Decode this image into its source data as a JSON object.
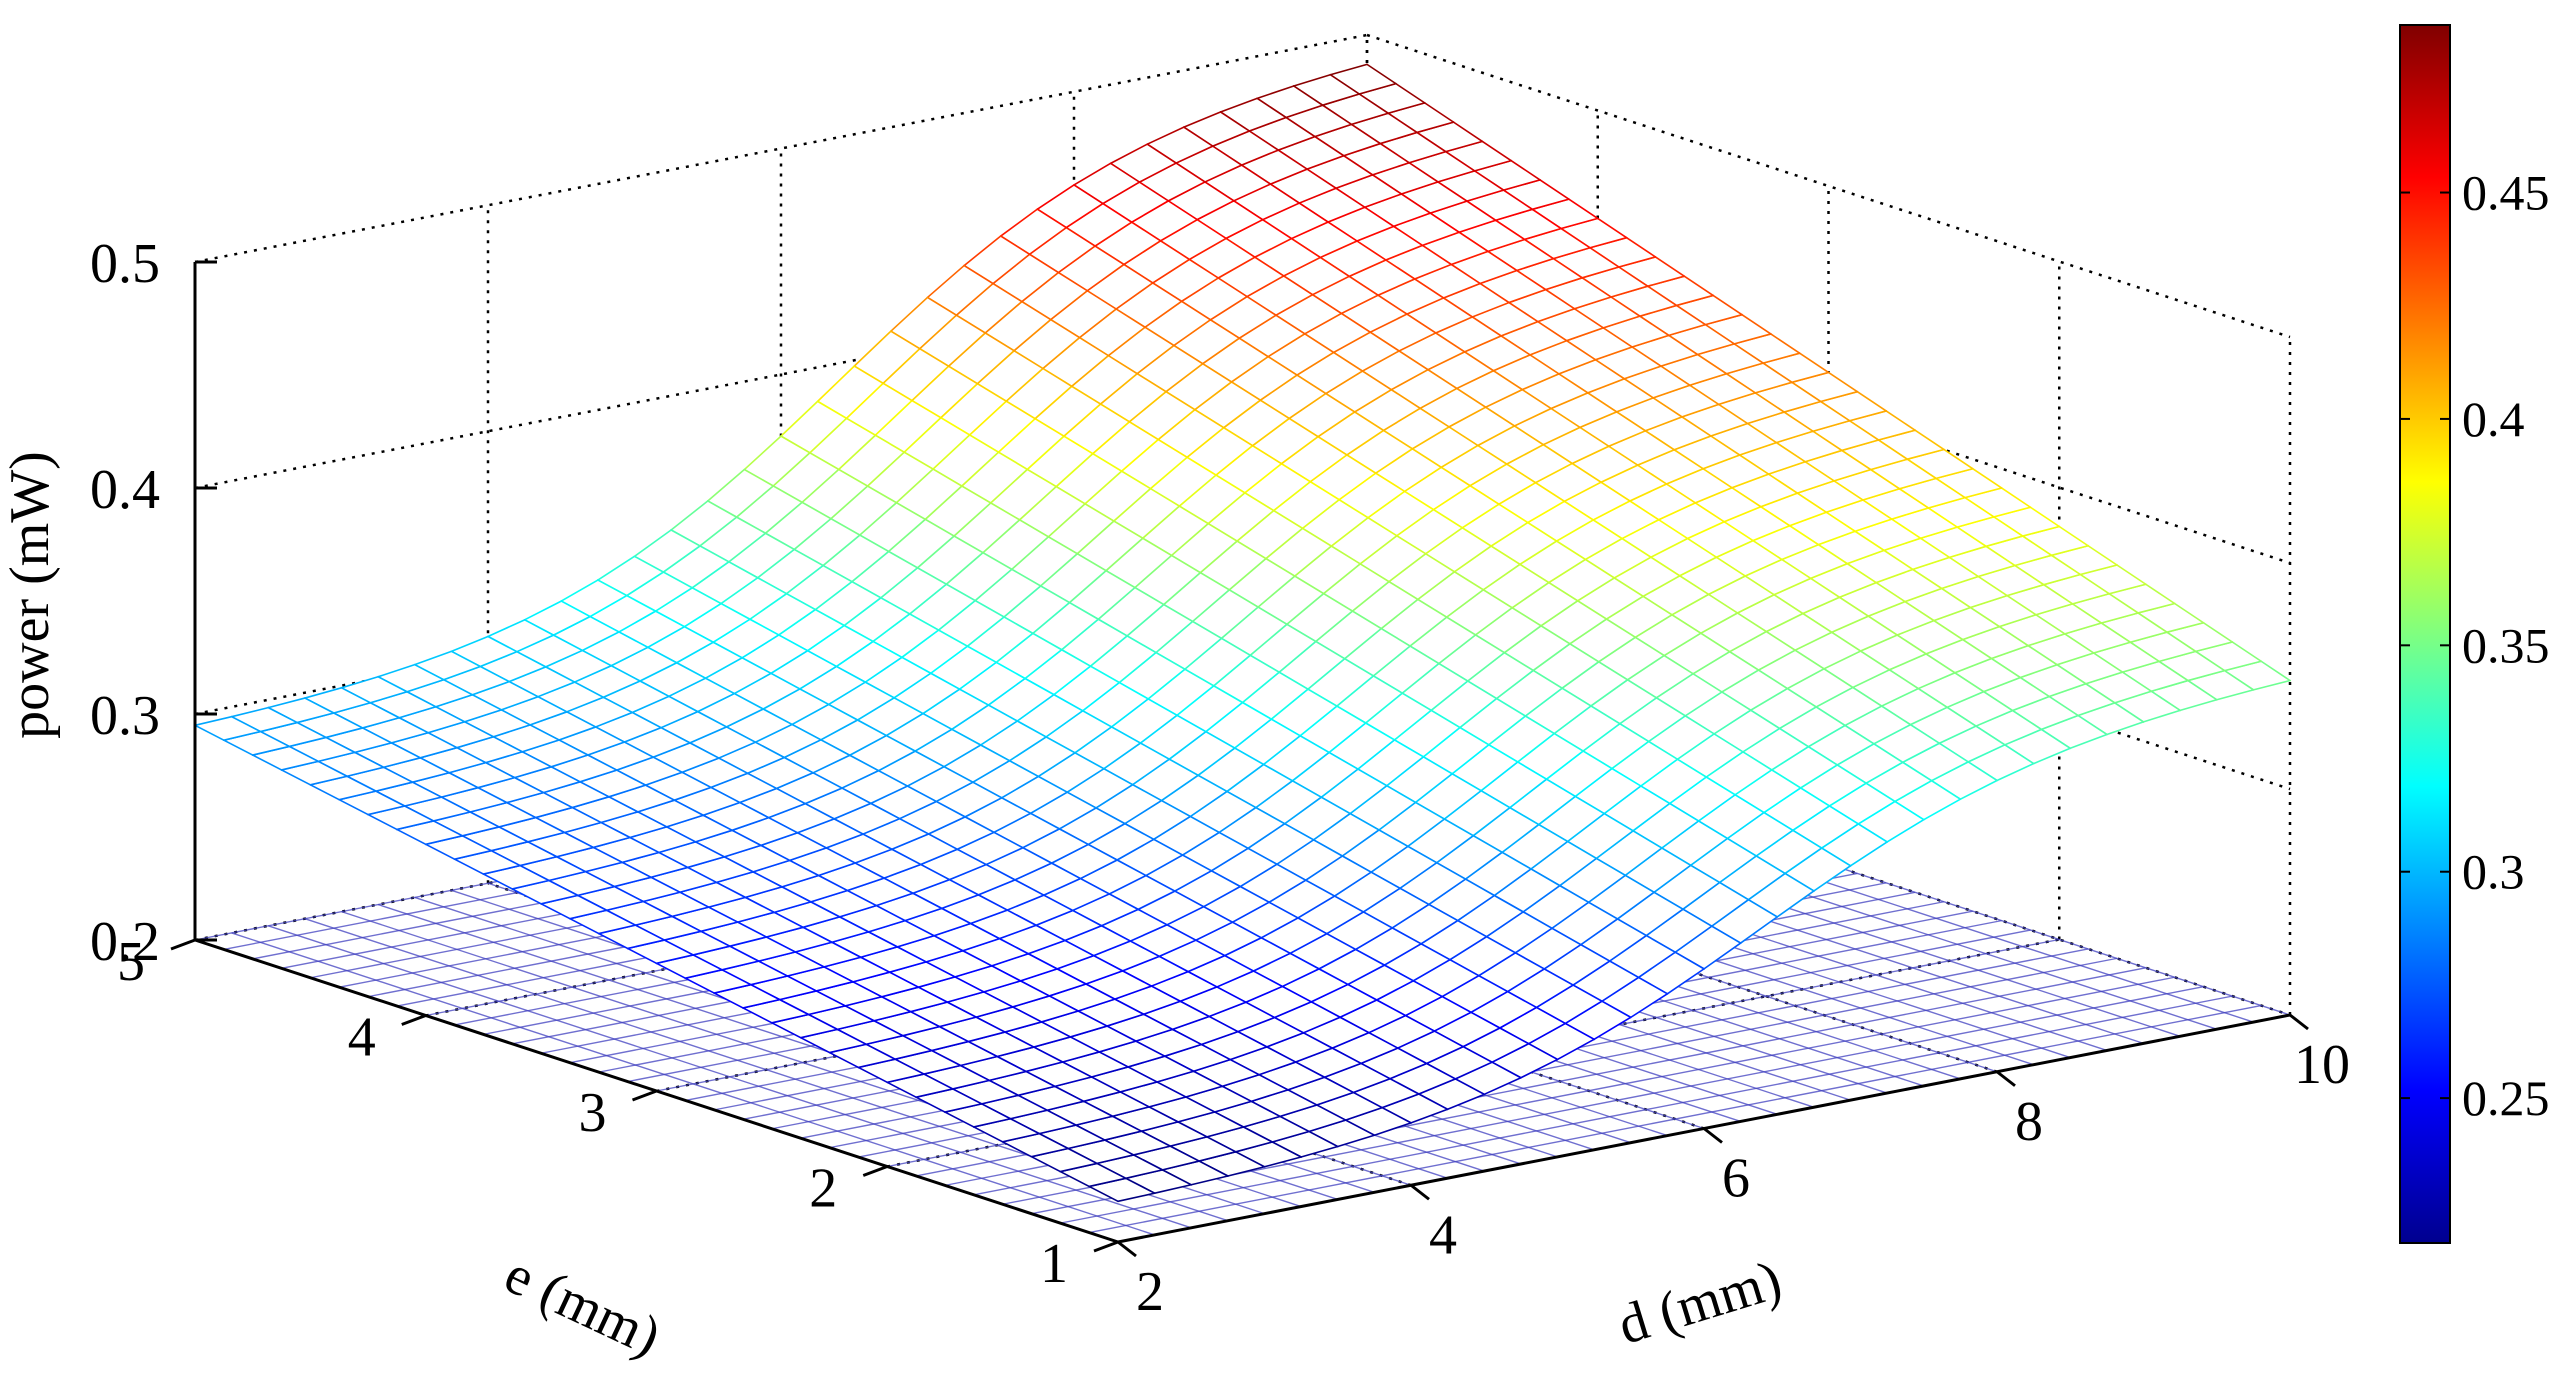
{
  "chart_data": {
    "type": "surface",
    "title": "",
    "xlabel": "d (mm)",
    "ylabel": "e (mm)",
    "zlabel": "power (mW)",
    "x_range": [
      2,
      10
    ],
    "y_range": [
      1,
      5
    ],
    "z_range": [
      0.2,
      0.5
    ],
    "x_ticks": [
      "2",
      "4",
      "6",
      "8",
      "10"
    ],
    "y_ticks": [
      "1",
      "2",
      "3",
      "4",
      "5"
    ],
    "z_ticks": [
      "0.2",
      "0.3",
      "0.4",
      "0.5"
    ],
    "grid": true,
    "colormap": "jet",
    "colorbar": {
      "range": [
        0.218,
        0.487
      ],
      "ticks": [
        "0.25",
        "0.3",
        "0.35",
        "0.4",
        "0.45"
      ],
      "placement": "right"
    },
    "surface_samples": [
      {
        "d": 2,
        "e": 5,
        "power": 0.295
      },
      {
        "d": 2,
        "e": 1,
        "power": 0.218
      },
      {
        "d": 10,
        "e": 5,
        "power": 0.487
      },
      {
        "d": 10,
        "e": 1,
        "power": 0.348
      }
    ],
    "grid_size": [
      33,
      33
    ],
    "floor_mesh": {
      "power": 0.2,
      "color": "#4040c0"
    }
  }
}
